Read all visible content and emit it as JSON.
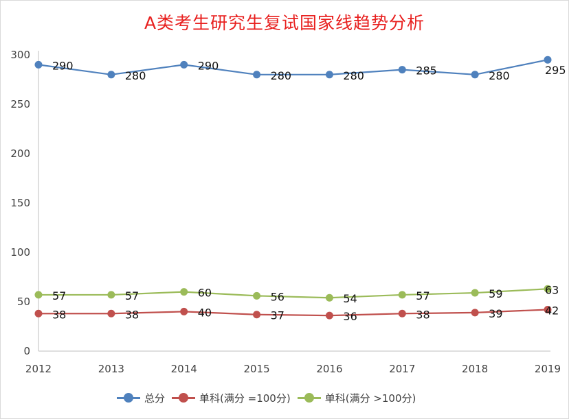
{
  "chart_data": {
    "type": "line",
    "title": "A类考生研究生复试国家线趋势分析",
    "categories": [
      "2012",
      "2013",
      "2014",
      "2015",
      "2016",
      "2017",
      "2018",
      "2019"
    ],
    "ylim": [
      0,
      300
    ],
    "yticks": [
      0,
      50,
      100,
      150,
      200,
      250,
      300
    ],
    "grid": false,
    "legend_position": "bottom",
    "series": [
      {
        "name": "总分",
        "color": "#4f81bd",
        "values": [
          290,
          280,
          290,
          280,
          280,
          285,
          280,
          295
        ]
      },
      {
        "name": "单科(满分 =100分)",
        "color": "#c0504d",
        "values": [
          38,
          38,
          40,
          37,
          36,
          38,
          39,
          42
        ]
      },
      {
        "name": "单科(满分 >100分)",
        "color": "#9bbb59",
        "values": [
          57,
          57,
          60,
          56,
          54,
          57,
          59,
          63
        ]
      }
    ]
  }
}
